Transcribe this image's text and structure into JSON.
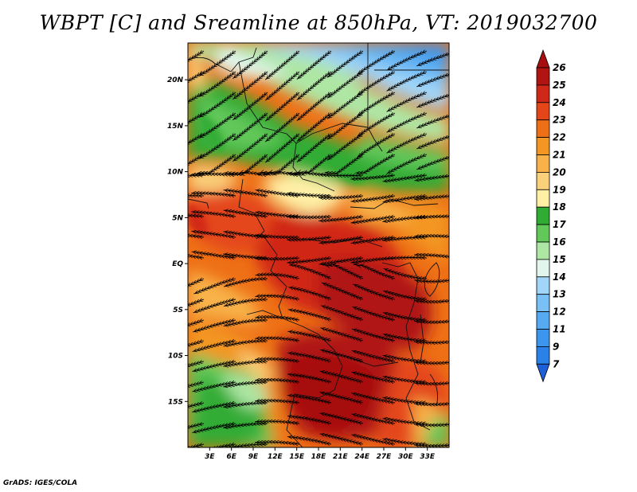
{
  "title": "WBPT [C] and Sreamline at 850hPa, VT: 2019032700",
  "credit": "GrADS: IGES/COLA",
  "map": {
    "lon_range": [
      0,
      36
    ],
    "lat_range": [
      -20,
      24
    ],
    "lat_ticks": [
      {
        "value": 20,
        "label": "20N"
      },
      {
        "value": 15,
        "label": "15N"
      },
      {
        "value": 10,
        "label": "10N"
      },
      {
        "value": 5,
        "label": "5N"
      },
      {
        "value": 0,
        "label": "EQ"
      },
      {
        "value": -5,
        "label": "5S"
      },
      {
        "value": -10,
        "label": "10S"
      },
      {
        "value": -15,
        "label": "15S"
      }
    ],
    "lon_ticks": [
      {
        "value": 3,
        "label": "3E"
      },
      {
        "value": 6,
        "label": "6E"
      },
      {
        "value": 9,
        "label": "9E"
      },
      {
        "value": 12,
        "label": "12E"
      },
      {
        "value": 15,
        "label": "15E"
      },
      {
        "value": 18,
        "label": "18E"
      },
      {
        "value": 21,
        "label": "21E"
      },
      {
        "value": 24,
        "label": "24E"
      },
      {
        "value": 27,
        "label": "27E"
      },
      {
        "value": 30,
        "label": "30E"
      },
      {
        "value": 33,
        "label": "33E"
      }
    ]
  },
  "colorbar": {
    "levels": [
      {
        "label": "7",
        "color": "#1e6fe0"
      },
      {
        "label": "9",
        "color": "#2a82e8"
      },
      {
        "label": "11",
        "color": "#3c96ee"
      },
      {
        "label": "12",
        "color": "#55aaf2"
      },
      {
        "label": "13",
        "color": "#78c0f5"
      },
      {
        "label": "14",
        "color": "#a2d6f8"
      },
      {
        "label": "15",
        "color": "#e2f6ee"
      },
      {
        "label": "16",
        "color": "#aee6a4"
      },
      {
        "label": "17",
        "color": "#62c85a"
      },
      {
        "label": "18",
        "color": "#30ac35"
      },
      {
        "label": "19",
        "color": "#fff0a6"
      },
      {
        "label": "20",
        "color": "#fad07a"
      },
      {
        "label": "21",
        "color": "#f8b24a"
      },
      {
        "label": "22",
        "color": "#f39624"
      },
      {
        "label": "23",
        "color": "#ee7016"
      },
      {
        "label": "24",
        "color": "#e4461a"
      },
      {
        "label": "25",
        "color": "#d02818"
      },
      {
        "label": "26",
        "color": "#b01512"
      }
    ],
    "bottom_color": "#1c5fd8",
    "top_color": "#a60e10"
  }
}
